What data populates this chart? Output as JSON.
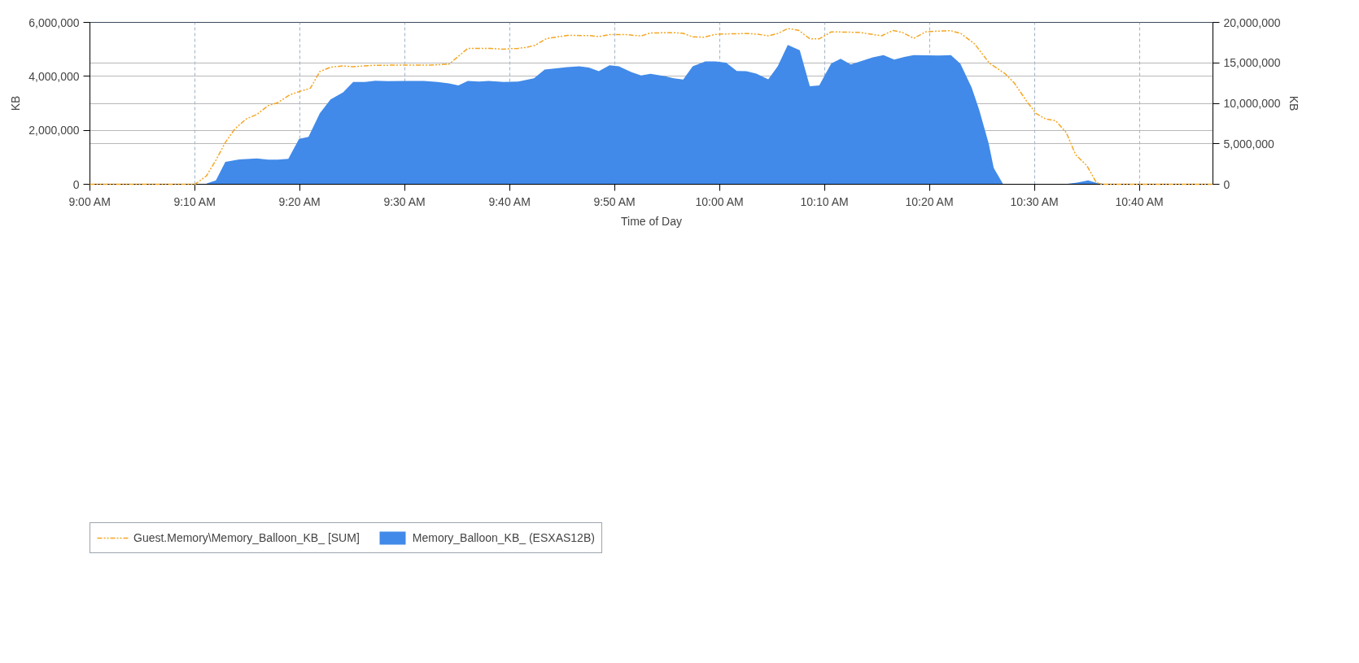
{
  "chart_data": {
    "type": "area",
    "xlabel": "Time of Day",
    "ylabel": "KB",
    "y2label": "KB",
    "xlim": [
      9.0,
      10.783
    ],
    "ylim": [
      0,
      6000000
    ],
    "y2lim": [
      0,
      20000000
    ],
    "xticks": [
      {
        "value": 9.0,
        "label": "9:00 AM"
      },
      {
        "value": 9.1667,
        "label": "9:10 AM"
      },
      {
        "value": 9.3333,
        "label": "9:20 AM"
      },
      {
        "value": 9.5,
        "label": "9:30 AM"
      },
      {
        "value": 9.6667,
        "label": "9:40 AM"
      },
      {
        "value": 9.8333,
        "label": "9:50 AM"
      },
      {
        "value": 10.0,
        "label": "10:00 AM"
      },
      {
        "value": 10.1667,
        "label": "10:10 AM"
      },
      {
        "value": 10.3333,
        "label": "10:20 AM"
      },
      {
        "value": 10.5,
        "label": "10:30 AM"
      },
      {
        "value": 10.6667,
        "label": "10:40 AM"
      }
    ],
    "yticks": [
      0,
      {
        "value": 2000000,
        "label": "2,000,000"
      },
      {
        "value": 4000000,
        "label": "4,000,000"
      },
      {
        "value": 6000000,
        "label": "6,000,000"
      }
    ],
    "y2ticks": [
      0,
      {
        "value": 5000000,
        "label": "5,000,000"
      },
      {
        "value": 10000000,
        "label": "10,000,000"
      },
      {
        "value": 15000000,
        "label": "15,000,000"
      },
      {
        "value": 20000000,
        "label": "20,000,000"
      }
    ],
    "grid": true,
    "legend": "bottom left",
    "series": [
      {
        "name": "Guest.Memory\\Memory_Balloon_KB_ [SUM]",
        "type": "line",
        "axis": "y2",
        "line_style": "dashed",
        "color": "#f5a623",
        "x": [
          9.0,
          9.167,
          9.185,
          9.2,
          9.215,
          9.23,
          9.248,
          9.265,
          9.283,
          9.298,
          9.317,
          9.335,
          9.35,
          9.365,
          9.383,
          9.402,
          9.417,
          9.45,
          9.498,
          9.54,
          9.57,
          9.6,
          9.637,
          9.653,
          9.68,
          9.692,
          9.707,
          9.725,
          9.758,
          9.792,
          9.808,
          9.825,
          9.852,
          9.875,
          9.89,
          9.927,
          9.942,
          9.957,
          9.975,
          9.993,
          10.017,
          10.047,
          10.062,
          10.077,
          10.092,
          10.108,
          10.125,
          10.143,
          10.158,
          10.177,
          10.222,
          10.257,
          10.275,
          10.29,
          10.308,
          10.327,
          10.345,
          10.367,
          10.383,
          10.405,
          10.428,
          10.453,
          10.468,
          10.487,
          10.502,
          10.517,
          10.533,
          10.55,
          10.565,
          10.583,
          10.598,
          10.607,
          10.783
        ],
        "values": [
          0,
          0,
          1030000,
          2970000,
          5170000,
          6830000,
          8070000,
          8620000,
          9720000,
          10070000,
          11030000,
          11520000,
          11860000,
          13930000,
          14480000,
          14620000,
          14520000,
          14690000,
          14730000,
          14730000,
          14830000,
          16790000,
          16790000,
          16690000,
          16790000,
          16900000,
          17170000,
          18000000,
          18390000,
          18370000,
          18250000,
          18480000,
          18480000,
          18320000,
          18690000,
          18730000,
          18650000,
          18210000,
          18170000,
          18520000,
          18590000,
          18620000,
          18520000,
          18340000,
          18620000,
          19240000,
          19030000,
          17970000,
          17970000,
          18830000,
          18760000,
          18340000,
          19000000,
          18760000,
          18030000,
          18830000,
          18920000,
          18970000,
          18620000,
          17310000,
          14970000,
          13660000,
          12480000,
          10280000,
          8760000,
          8070000,
          7860000,
          6410000,
          3660000,
          2280000,
          210000,
          0,
          0
        ]
      },
      {
        "name": "Memory_Balloon_KB_ (ESXAS12B)",
        "color": "#418ae9",
        "x": [
          9.0,
          9.182,
          9.2,
          9.215,
          9.237,
          9.265,
          9.283,
          9.298,
          9.315,
          9.332,
          9.347,
          9.365,
          9.382,
          9.402,
          9.418,
          9.437,
          9.453,
          9.473,
          9.498,
          9.53,
          9.552,
          9.57,
          9.585,
          9.6,
          9.618,
          9.633,
          9.657,
          9.68,
          9.705,
          9.722,
          9.758,
          9.777,
          9.792,
          9.808,
          9.825,
          9.84,
          9.86,
          9.875,
          9.89,
          9.912,
          9.927,
          9.942,
          9.957,
          9.977,
          9.993,
          10.01,
          10.027,
          10.042,
          10.058,
          10.077,
          10.092,
          10.108,
          10.127,
          10.143,
          10.158,
          10.177,
          10.192,
          10.208,
          10.225,
          10.243,
          10.26,
          10.277,
          10.293,
          10.308,
          10.33,
          10.348,
          10.367,
          10.382,
          10.4,
          10.412,
          10.427,
          10.435,
          10.45,
          10.547,
          10.567,
          10.585,
          10.6,
          10.615,
          10.783
        ],
        "values": [
          0,
          0,
          140000,
          830000,
          920000,
          960000,
          910000,
          910000,
          940000,
          1680000,
          1760000,
          2630000,
          3140000,
          3410000,
          3790000,
          3790000,
          3840000,
          3820000,
          3830000,
          3830000,
          3790000,
          3740000,
          3660000,
          3830000,
          3810000,
          3830000,
          3790000,
          3810000,
          3930000,
          4250000,
          4340000,
          4370000,
          4330000,
          4190000,
          4410000,
          4370000,
          4150000,
          4030000,
          4090000,
          4010000,
          3930000,
          3880000,
          4370000,
          4550000,
          4550000,
          4510000,
          4200000,
          4190000,
          4100000,
          3890000,
          4370000,
          5160000,
          4970000,
          3630000,
          3660000,
          4480000,
          4650000,
          4440000,
          4570000,
          4700000,
          4790000,
          4620000,
          4720000,
          4790000,
          4780000,
          4770000,
          4790000,
          4470000,
          3580000,
          2750000,
          1510000,
          600000,
          0,
          0,
          60000,
          140000,
          40000,
          0,
          0
        ]
      }
    ]
  }
}
